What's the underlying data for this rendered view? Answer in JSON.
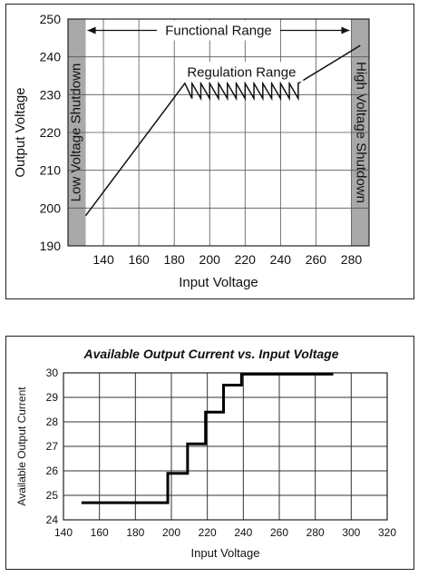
{
  "chart_data": [
    {
      "type": "line",
      "title": "",
      "xlabel": "Input Voltage",
      "ylabel": "Output Voltage",
      "xlim": [
        120,
        290
      ],
      "ylim": [
        190,
        250
      ],
      "x_ticks": [
        140,
        160,
        180,
        200,
        220,
        240,
        260,
        280
      ],
      "y_ticks": [
        190,
        200,
        210,
        220,
        230,
        240,
        250
      ],
      "grid": true,
      "series": [
        {
          "name": "",
          "x": [
            130,
            186,
            190,
            190,
            195,
            195,
            200,
            200,
            205,
            205,
            210,
            210,
            215,
            215,
            220,
            220,
            225,
            225,
            230,
            230,
            235,
            235,
            240,
            240,
            245,
            245,
            250,
            250,
            285
          ],
          "y": [
            198,
            233,
            229,
            233,
            229,
            233,
            229,
            233,
            229,
            233,
            229,
            233,
            229,
            233,
            229,
            233,
            229,
            233,
            229,
            233,
            229,
            233,
            229,
            233,
            229,
            233,
            229,
            233,
            243
          ]
        }
      ],
      "regions": [
        {
          "label": "Low Voltage Shutdown",
          "x_range": [
            120,
            130
          ]
        },
        {
          "label": "High Voltage Shutdown",
          "x_range": [
            280,
            290
          ]
        }
      ],
      "annotations": {
        "functional_range": {
          "label": "Functional Range",
          "x_range": [
            130,
            280
          ],
          "y": 247
        },
        "regulation_range": {
          "label": "Regulation Range",
          "x_range": [
            186,
            250
          ],
          "y": 236
        }
      }
    },
    {
      "type": "line",
      "title": "Available Output Current vs. Input Voltage",
      "xlabel": "Input Voltage",
      "ylabel": "Available Output Current",
      "xlim": [
        140,
        320
      ],
      "ylim": [
        24,
        30
      ],
      "x_ticks": [
        140,
        160,
        180,
        200,
        220,
        240,
        260,
        280,
        300,
        320
      ],
      "y_ticks": [
        24,
        25,
        26,
        27,
        28,
        29,
        30
      ],
      "grid": true,
      "series": [
        {
          "name": "",
          "x": [
            150,
            198,
            198,
            209,
            209,
            219,
            219,
            229,
            229,
            239,
            239,
            290
          ],
          "y": [
            24.7,
            24.7,
            25.9,
            25.9,
            27.1,
            27.1,
            28.4,
            28.4,
            29.5,
            29.5,
            29.95,
            29.95
          ]
        }
      ]
    }
  ]
}
